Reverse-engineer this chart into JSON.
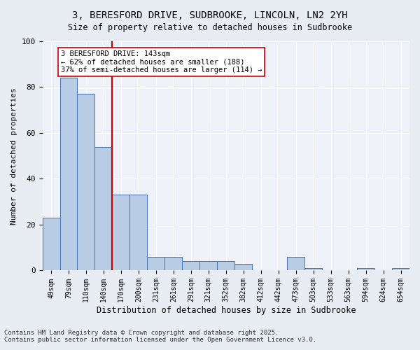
{
  "title1": "3, BERESFORD DRIVE, SUDBROOKE, LINCOLN, LN2 2YH",
  "title2": "Size of property relative to detached houses in Sudbrooke",
  "xlabel": "Distribution of detached houses by size in Sudbrooke",
  "ylabel": "Number of detached properties",
  "categories": [
    "49sqm",
    "79sqm",
    "110sqm",
    "140sqm",
    "170sqm",
    "200sqm",
    "231sqm",
    "261sqm",
    "291sqm",
    "321sqm",
    "352sqm",
    "382sqm",
    "412sqm",
    "442sqm",
    "473sqm",
    "503sqm",
    "533sqm",
    "563sqm",
    "594sqm",
    "624sqm",
    "654sqm"
  ],
  "values": [
    23,
    84,
    77,
    54,
    33,
    33,
    6,
    6,
    4,
    4,
    4,
    3,
    0,
    0,
    6,
    1,
    0,
    0,
    1,
    0,
    1
  ],
  "bar_color": "#b8cce4",
  "bar_edge_color": "#4472c4",
  "vline_x": 3.5,
  "vline_color": "#cc0000",
  "annotation_line1": "3 BERESFORD DRIVE: 143sqm",
  "annotation_line2": "← 62% of detached houses are smaller (188)",
  "annotation_line3": "37% of semi-detached houses are larger (114) →",
  "annotation_box_color": "white",
  "annotation_box_edge_color": "#cc0000",
  "background_color": "#e8edf4",
  "plot_background_color": "#eef1f8",
  "grid_color": "white",
  "ylim": [
    0,
    100
  ],
  "yticks": [
    0,
    20,
    40,
    60,
    80,
    100
  ],
  "footer1": "Contains HM Land Registry data © Crown copyright and database right 2025.",
  "footer2": "Contains public sector information licensed under the Open Government Licence v3.0."
}
